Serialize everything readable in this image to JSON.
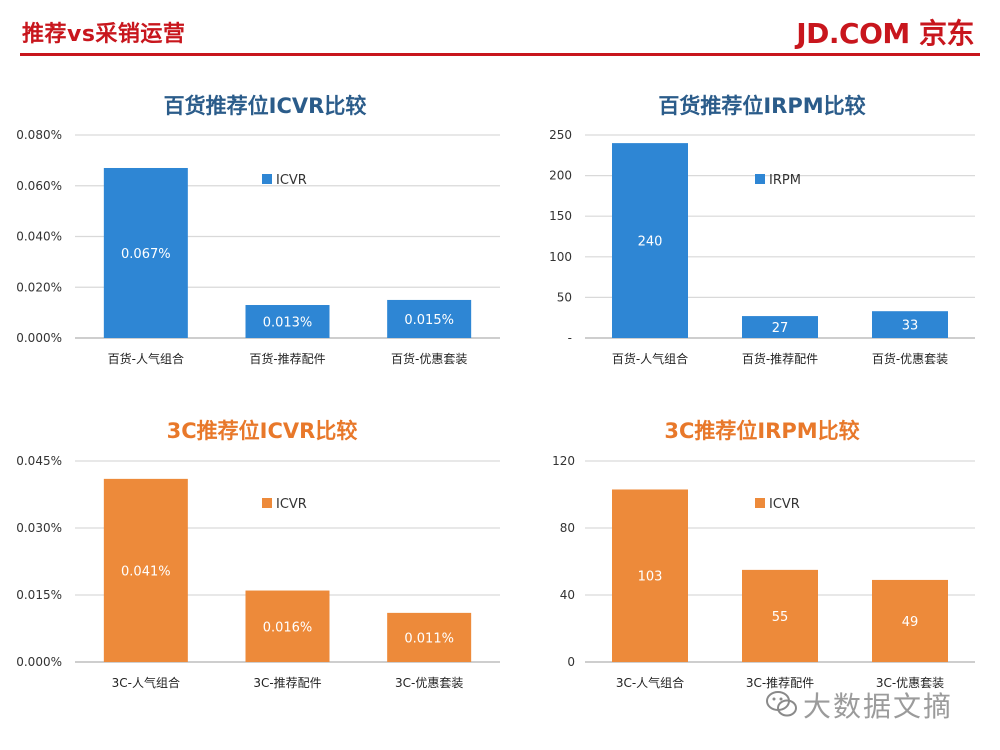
{
  "header": {
    "title": "推荐vs采销运营",
    "brand": "JD.COM 京东"
  },
  "watermark": {
    "text": "大数据文摘"
  },
  "colors": {
    "accent": "#c8161d",
    "blue": "#2e86d4",
    "orange": "#ed8a3a",
    "title_blue": "#2b5c8a",
    "title_orange": "#e8782a"
  },
  "chart_data": [
    {
      "type": "bar",
      "title": "百货推荐位ICVR比较",
      "categories": [
        "百货-人气组合",
        "百货-推荐配件",
        "百货-优惠套装"
      ],
      "series": [
        {
          "name": "ICVR",
          "values": [
            0.067,
            0.013,
            0.015
          ]
        }
      ],
      "value_labels": [
        "0.067%",
        "0.013%",
        "0.015%"
      ],
      "yticks": [
        "0.000%",
        "0.020%",
        "0.040%",
        "0.060%",
        "0.080%"
      ],
      "ylim": [
        0,
        0.08
      ],
      "unit": "%",
      "grid": true,
      "legend": "top-right"
    },
    {
      "type": "bar",
      "title": "百货推荐位IRPM比较",
      "categories": [
        "百货-人气组合",
        "百货-推荐配件",
        "百货-优惠套装"
      ],
      "series": [
        {
          "name": "IRPM",
          "values": [
            240,
            27,
            33
          ]
        }
      ],
      "value_labels": [
        "240",
        "27",
        "33"
      ],
      "yticks": [
        "-",
        "50",
        "100",
        "150",
        "200",
        "250"
      ],
      "ylim": [
        0,
        250
      ],
      "grid": true,
      "legend": "top-right"
    },
    {
      "type": "bar",
      "title": "3C推荐位ICVR比较",
      "categories": [
        "3C-人气组合",
        "3C-推荐配件",
        "3C-优惠套装"
      ],
      "series": [
        {
          "name": "ICVR",
          "values": [
            0.041,
            0.016,
            0.011
          ]
        }
      ],
      "value_labels": [
        "0.041%",
        "0.016%",
        "0.011%"
      ],
      "yticks": [
        "0.000%",
        "0.015%",
        "0.030%",
        "0.045%"
      ],
      "ylim": [
        0,
        0.045
      ],
      "unit": "%",
      "grid": true,
      "legend": "top-right"
    },
    {
      "type": "bar",
      "title": "3C推荐位IRPM比较",
      "categories": [
        "3C-人气组合",
        "3C-推荐配件",
        "3C-优惠套装"
      ],
      "series": [
        {
          "name": "ICVR",
          "values": [
            103,
            55,
            49
          ]
        }
      ],
      "value_labels": [
        "103",
        "55",
        "49"
      ],
      "yticks": [
        "0",
        "40",
        "80",
        "120"
      ],
      "ylim": [
        0,
        120
      ],
      "grid": true,
      "legend": "top-right"
    }
  ]
}
